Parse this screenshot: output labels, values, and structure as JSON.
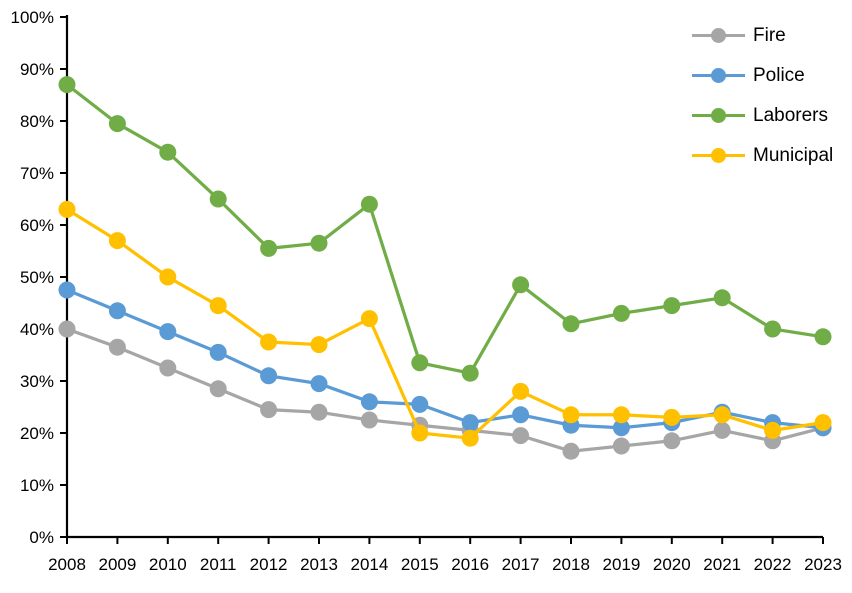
{
  "chart_data": {
    "type": "line",
    "title": "",
    "categories": [
      "2008",
      "2009",
      "2010",
      "2011",
      "2012",
      "2013",
      "2014",
      "2015",
      "2016",
      "2017",
      "2018",
      "2019",
      "2020",
      "2021",
      "2022",
      "2023"
    ],
    "y_ticks": [
      "0%",
      "10%",
      "20%",
      "30%",
      "40%",
      "50%",
      "60%",
      "70%",
      "80%",
      "90%",
      "100%"
    ],
    "ylim": [
      0,
      100
    ],
    "ytick_step": 10,
    "grid": false,
    "legend_position": "top-right",
    "background_color": "#ffffff",
    "axis_color": "#000000",
    "marker_style": "circle",
    "series": [
      {
        "name": "Fire",
        "color": "#a6a6a6",
        "values": [
          40,
          36.5,
          32.5,
          28.5,
          24.5,
          24,
          22.5,
          21.5,
          20.5,
          19.5,
          16.5,
          17.5,
          18.5,
          20.5,
          18.5,
          21
        ]
      },
      {
        "name": "Police",
        "color": "#5b9bd5",
        "values": [
          47.5,
          43.5,
          39.5,
          35.5,
          31,
          29.5,
          26,
          25.5,
          22,
          23.5,
          21.5,
          21,
          22,
          24,
          22,
          21
        ]
      },
      {
        "name": "Laborers",
        "color": "#70ad47",
        "values": [
          87,
          79.5,
          74,
          65,
          55.5,
          56.5,
          64,
          33.5,
          31.5,
          48.5,
          41,
          43,
          44.5,
          46,
          40,
          38.5
        ]
      },
      {
        "name": "Municipal",
        "color": "#ffc000",
        "values": [
          63,
          57,
          50,
          44.5,
          37.5,
          37,
          42,
          20,
          19,
          28,
          23.5,
          23.5,
          23,
          23.5,
          20.5,
          22
        ]
      }
    ]
  }
}
